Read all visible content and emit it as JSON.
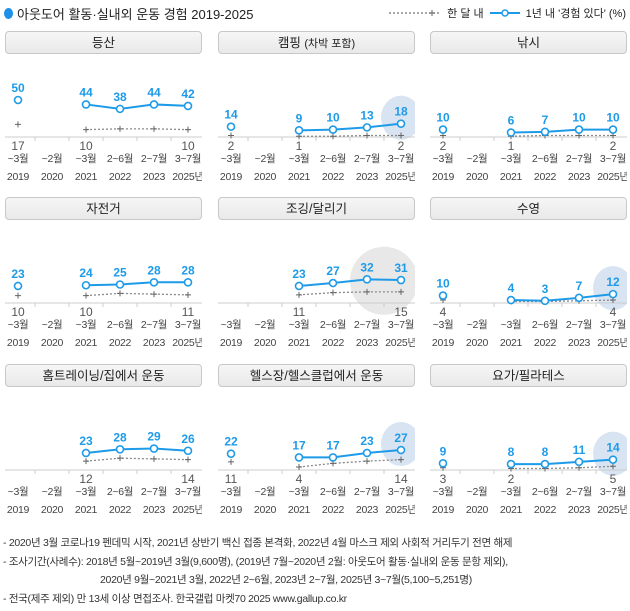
{
  "title": "아웃도어 활동·실내외 운동 경험 2019-2025",
  "legend": {
    "monthly": "한 달 내",
    "yearly": "1년 내 '경험 있다' (%)"
  },
  "colors": {
    "yearly": "#1e9be8",
    "monthly": "#8a8a8a",
    "highlight_blue": "#d9e4f2",
    "highlight_gray": "#e8e8e8"
  },
  "chart_data": {
    "type": "line",
    "categories_month": [
      "~3월",
      "~2월",
      "~3월",
      "2~6월",
      "2~7월",
      "3~7월"
    ],
    "categories_year": [
      "2019",
      "2020",
      "2021",
      "2022",
      "2023",
      "2025년"
    ],
    "panels": [
      {
        "title": "등산",
        "yearly": [
          50,
          null,
          44,
          38,
          44,
          42
        ],
        "monthly": [
          17,
          null,
          10,
          11,
          11,
          10
        ]
      },
      {
        "title": "캠핑",
        "subtitle": "(차박 포함)",
        "yearly": [
          14,
          null,
          9,
          10,
          13,
          18
        ],
        "monthly": [
          2,
          null,
          1,
          1,
          2,
          2
        ],
        "highlight": "2025"
      },
      {
        "title": "낚시",
        "yearly": [
          10,
          null,
          6,
          7,
          10,
          10
        ],
        "monthly": [
          2,
          null,
          1,
          2,
          2,
          2
        ]
      },
      {
        "title": "자전거",
        "yearly": [
          23,
          null,
          24,
          25,
          28,
          28
        ],
        "monthly": [
          10,
          null,
          10,
          13,
          12,
          11
        ]
      },
      {
        "title": "조깅/달리기",
        "yearly": [
          null,
          null,
          23,
          27,
          32,
          31
        ],
        "monthly": [
          null,
          null,
          11,
          14,
          15,
          15
        ],
        "highlight": "2023-2025"
      },
      {
        "title": "수영",
        "yearly": [
          10,
          null,
          4,
          3,
          7,
          12
        ],
        "monthly": [
          4,
          null,
          2,
          2,
          3,
          4
        ],
        "highlight": "2025"
      },
      {
        "title": "홈트레이닝/집에서 운동",
        "yearly": [
          null,
          null,
          23,
          28,
          29,
          26
        ],
        "monthly": [
          null,
          null,
          12,
          16,
          15,
          14
        ]
      },
      {
        "title": "헬스장/헬스클럽에서 운동",
        "yearly": [
          22,
          null,
          17,
          17,
          23,
          27
        ],
        "monthly": [
          11,
          null,
          4,
          9,
          12,
          14
        ],
        "highlight": "2025"
      },
      {
        "title": "요가/필라테스",
        "yearly": [
          9,
          null,
          8,
          8,
          11,
          14
        ],
        "monthly": [
          3,
          null,
          2,
          2,
          3,
          5
        ],
        "highlight": "2025"
      }
    ]
  },
  "footnotes": [
    "- 2020년 3월 코로나19 펜데믹 시작, 2021년 상반기 백신 접종 본격화, 2022년 4월 마스크 제외 사회적 거리두기 전면 해제",
    "- 조사기간(사례수):  2018년 5월~2019년 3월(9,600명), (2019년 7월~2020년 2월: 아웃도어 활동·실내외 운동 문항 제외),",
    "2020년 9월~2021년 3월, 2022년 2~6월, 2023년 2~7월, 2025년 3~7월(5,100~5,251명)",
    "- 전국(제주 제외) 만 13세 이상 면접조사. 한국갤럽 마켓70 2025 www.gallup.co.kr"
  ]
}
